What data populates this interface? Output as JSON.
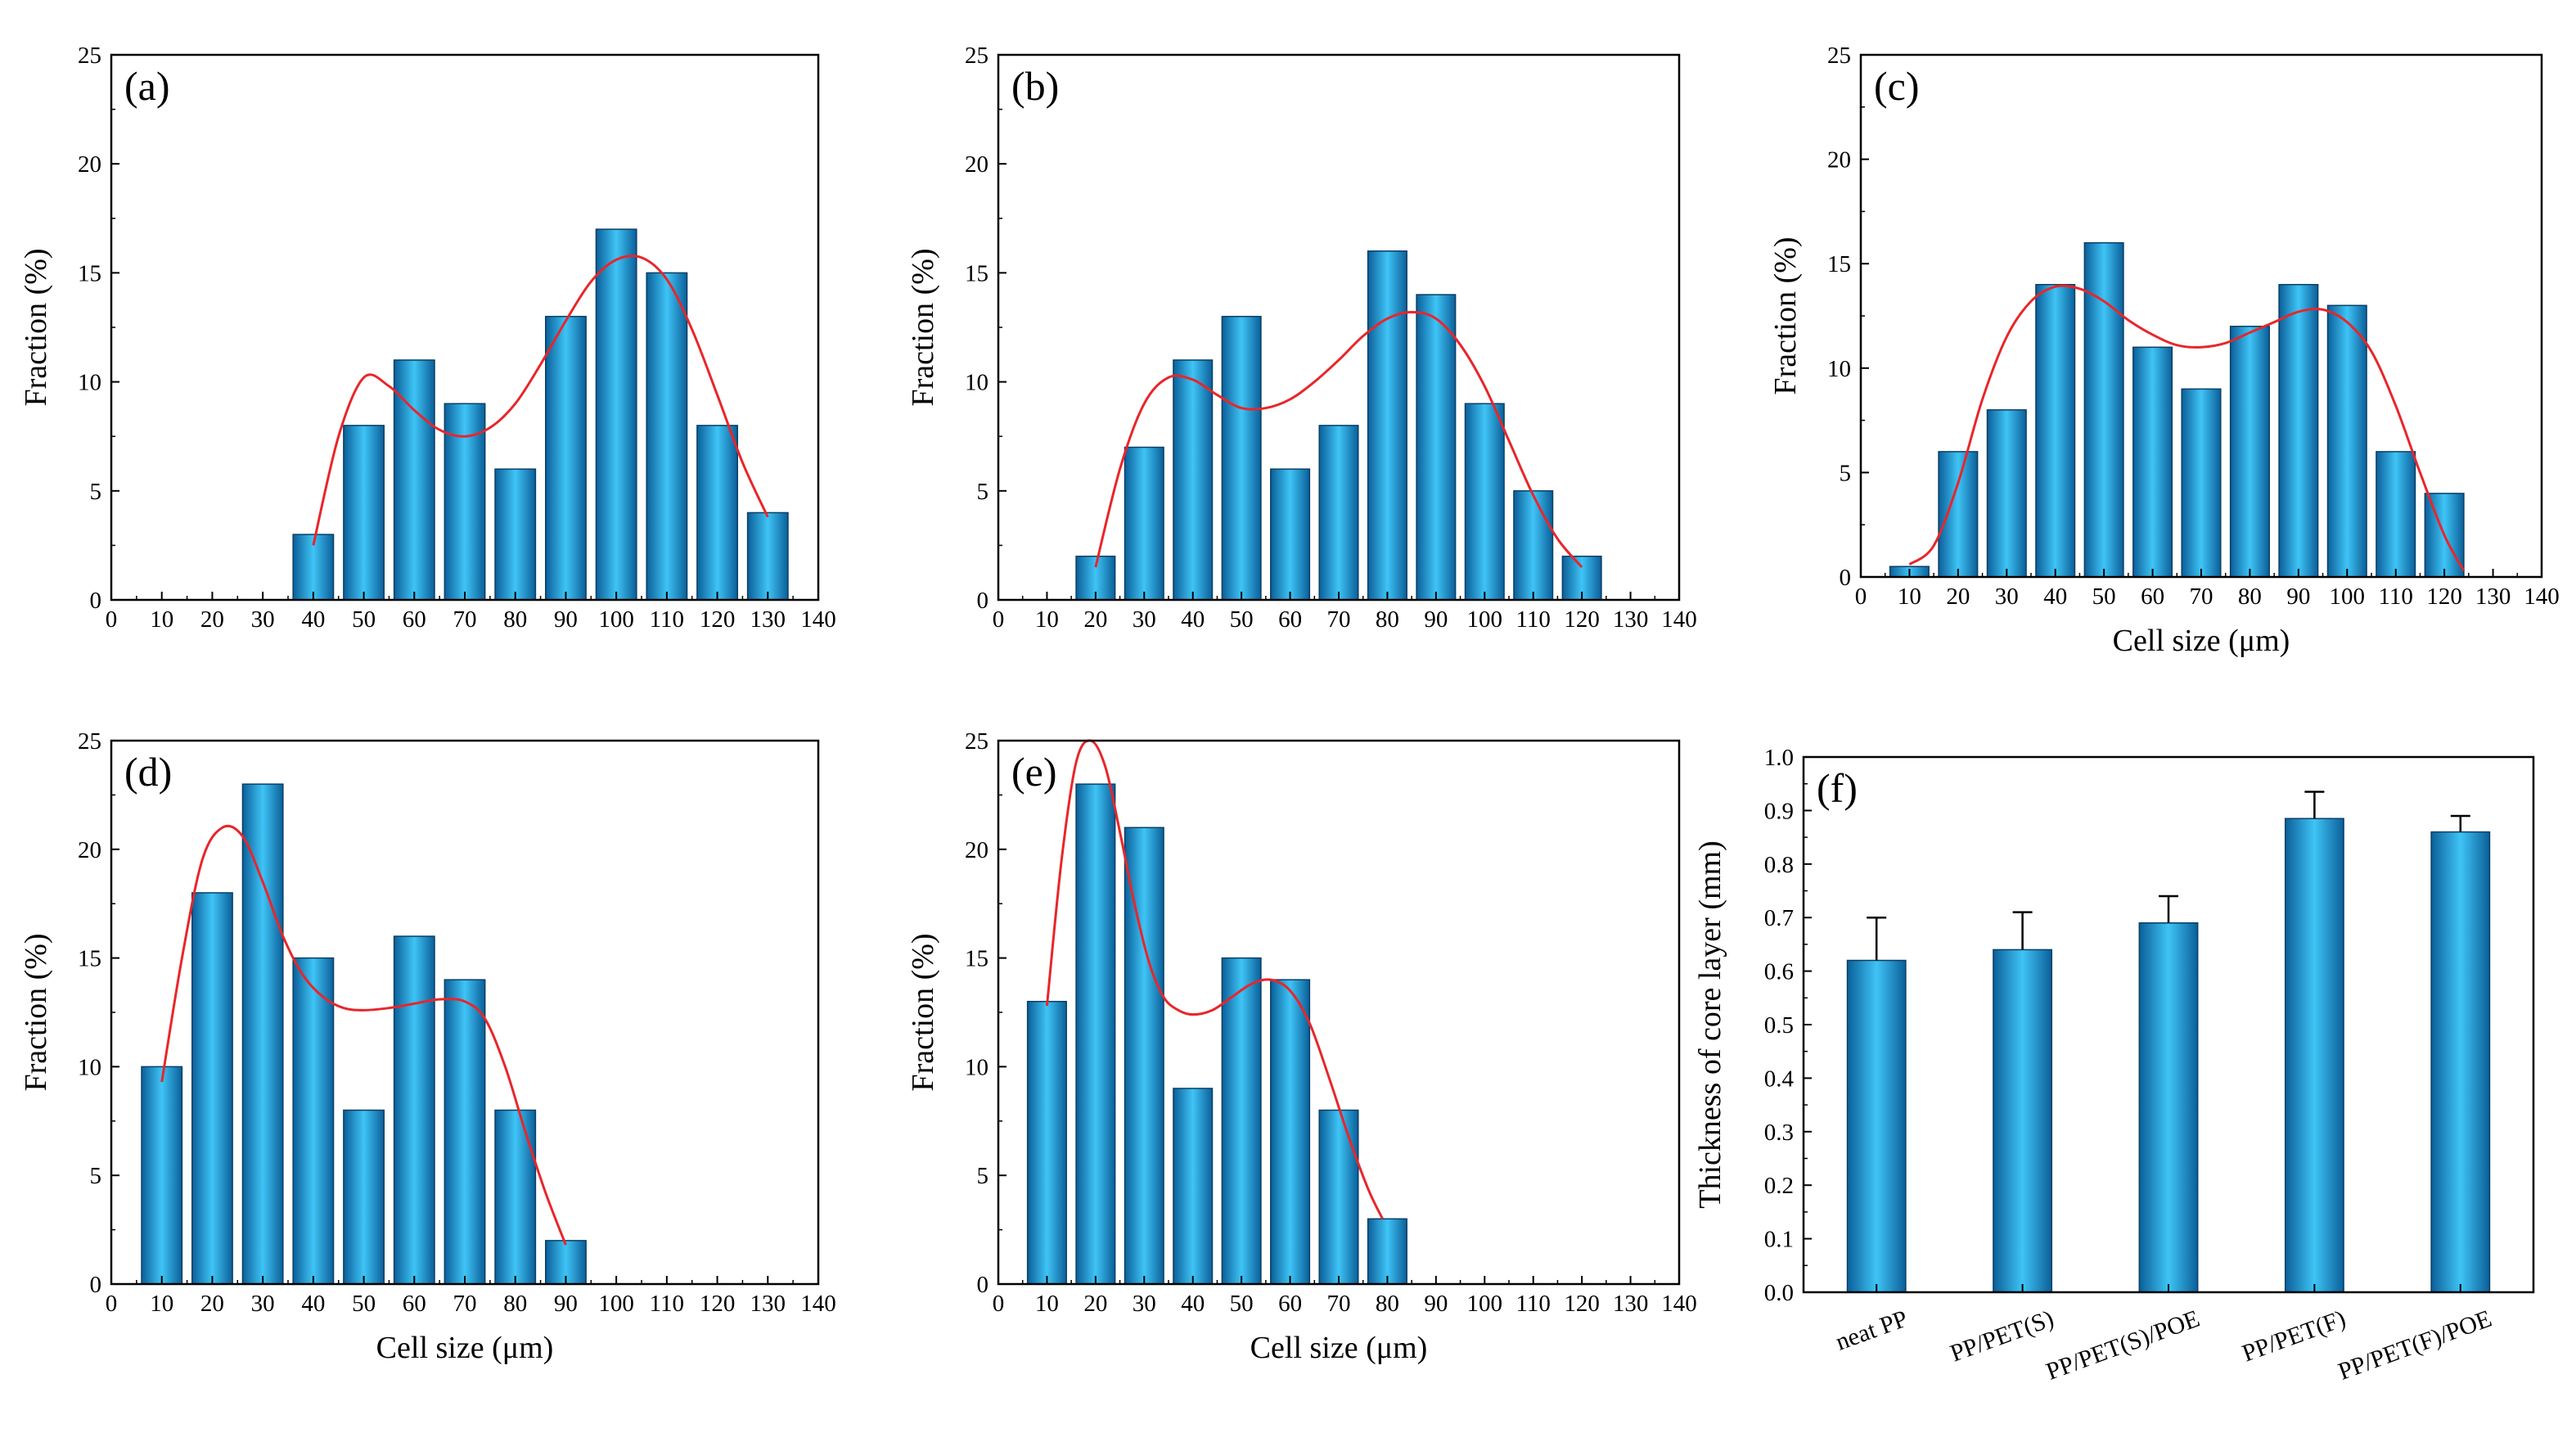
{
  "colors": {
    "bar_dark": "#0b5f99",
    "bar_light": "#3fc4f6",
    "bar_mid": "#19a4e6",
    "fit_line": "#e8262a",
    "axis": "#000000"
  },
  "chart_data": [
    {
      "id": "a",
      "type": "bar",
      "panel_label": "(a)",
      "title": "",
      "xlabel": "",
      "ylabel": "Fraction (%)",
      "xlim": [
        0,
        140
      ],
      "ylim": [
        0,
        25
      ],
      "x_ticks": [
        "0",
        "10",
        "20",
        "30",
        "40",
        "50",
        "60",
        "70",
        "80",
        "90",
        "100",
        "110",
        "120",
        "130",
        "140"
      ],
      "y_ticks": [
        "0",
        "5",
        "10",
        "15",
        "20",
        "25"
      ],
      "x": [
        40,
        50,
        60,
        70,
        80,
        90,
        100,
        110,
        120,
        130
      ],
      "values": [
        3,
        8,
        11,
        9,
        6,
        13,
        17,
        15,
        8,
        4
      ],
      "fit_curve": [
        [
          40,
          2.5
        ],
        [
          45,
          7.5
        ],
        [
          50,
          10.2
        ],
        [
          55,
          9.8
        ],
        [
          60,
          8.7
        ],
        [
          65,
          7.8
        ],
        [
          70,
          7.5
        ],
        [
          75,
          7.9
        ],
        [
          80,
          9.0
        ],
        [
          85,
          10.8
        ],
        [
          90,
          12.8
        ],
        [
          95,
          14.6
        ],
        [
          100,
          15.6
        ],
        [
          105,
          15.7
        ],
        [
          110,
          14.7
        ],
        [
          115,
          12.4
        ],
        [
          120,
          9.4
        ],
        [
          125,
          6.3
        ],
        [
          130,
          3.8
        ]
      ]
    },
    {
      "id": "b",
      "type": "bar",
      "panel_label": "(b)",
      "title": "",
      "xlabel": "",
      "ylabel": "Fraction (%)",
      "xlim": [
        0,
        140
      ],
      "ylim": [
        0,
        25
      ],
      "x_ticks": [
        "0",
        "10",
        "20",
        "30",
        "40",
        "50",
        "60",
        "70",
        "80",
        "90",
        "100",
        "110",
        "120",
        "130",
        "140"
      ],
      "y_ticks": [
        "0",
        "5",
        "10",
        "15",
        "20",
        "25"
      ],
      "x": [
        20,
        30,
        40,
        50,
        60,
        70,
        80,
        90,
        100,
        110,
        120
      ],
      "values": [
        2,
        7,
        11,
        13,
        6,
        8,
        16,
        14,
        9,
        5,
        2
      ],
      "fit_curve": [
        [
          20,
          1.5
        ],
        [
          25,
          6.0
        ],
        [
          30,
          9.0
        ],
        [
          35,
          10.2
        ],
        [
          40,
          10.1
        ],
        [
          45,
          9.4
        ],
        [
          50,
          8.8
        ],
        [
          55,
          8.8
        ],
        [
          60,
          9.2
        ],
        [
          65,
          10.0
        ],
        [
          70,
          11.0
        ],
        [
          75,
          12.1
        ],
        [
          80,
          12.9
        ],
        [
          85,
          13.2
        ],
        [
          90,
          12.9
        ],
        [
          95,
          11.7
        ],
        [
          100,
          9.8
        ],
        [
          105,
          7.3
        ],
        [
          110,
          4.8
        ],
        [
          115,
          2.8
        ],
        [
          120,
          1.5
        ]
      ]
    },
    {
      "id": "c",
      "type": "bar",
      "panel_label": "(c)",
      "title": "",
      "xlabel": "Cell size (μm)",
      "ylabel": "Fraction (%)",
      "xlim": [
        0,
        140
      ],
      "ylim": [
        0,
        25
      ],
      "x_ticks": [
        "0",
        "10",
        "20",
        "30",
        "40",
        "50",
        "60",
        "70",
        "80",
        "90",
        "100",
        "110",
        "120",
        "130",
        "140"
      ],
      "y_ticks": [
        "0",
        "5",
        "10",
        "15",
        "20",
        "25"
      ],
      "x": [
        10,
        20,
        30,
        40,
        50,
        60,
        70,
        80,
        90,
        100,
        110,
        120
      ],
      "values": [
        0.5,
        6,
        8,
        14,
        16,
        11,
        9,
        12,
        14,
        13,
        6,
        4
      ],
      "fit_curve": [
        [
          10,
          0.6
        ],
        [
          15,
          1.5
        ],
        [
          20,
          4.5
        ],
        [
          25,
          8.5
        ],
        [
          30,
          11.5
        ],
        [
          35,
          13.2
        ],
        [
          40,
          13.9
        ],
        [
          45,
          13.8
        ],
        [
          50,
          13.2
        ],
        [
          55,
          12.3
        ],
        [
          60,
          11.6
        ],
        [
          65,
          11.1
        ],
        [
          70,
          11.0
        ],
        [
          75,
          11.2
        ],
        [
          80,
          11.7
        ],
        [
          85,
          12.2
        ],
        [
          90,
          12.7
        ],
        [
          95,
          12.8
        ],
        [
          100,
          12.2
        ],
        [
          105,
          10.8
        ],
        [
          110,
          8.2
        ],
        [
          115,
          5.0
        ],
        [
          120,
          2.0
        ],
        [
          124,
          0.3
        ]
      ]
    },
    {
      "id": "d",
      "type": "bar",
      "panel_label": "(d)",
      "title": "",
      "xlabel": "Cell size (μm)",
      "ylabel": "Fraction (%)",
      "xlim": [
        0,
        140
      ],
      "ylim": [
        0,
        25
      ],
      "x_ticks": [
        "0",
        "10",
        "20",
        "30",
        "40",
        "50",
        "60",
        "70",
        "80",
        "90",
        "100",
        "110",
        "120",
        "130",
        "140"
      ],
      "y_ticks": [
        "0",
        "5",
        "10",
        "15",
        "20",
        "25"
      ],
      "x": [
        10,
        20,
        30,
        40,
        50,
        60,
        70,
        80,
        90
      ],
      "values": [
        10,
        18,
        23,
        15,
        8,
        16,
        14,
        8,
        2
      ],
      "fit_curve": [
        [
          10,
          9.3
        ],
        [
          14,
          15.0
        ],
        [
          18,
          19.5
        ],
        [
          22,
          21.0
        ],
        [
          26,
          20.6
        ],
        [
          30,
          18.5
        ],
        [
          34,
          16.0
        ],
        [
          38,
          14.2
        ],
        [
          42,
          13.2
        ],
        [
          46,
          12.7
        ],
        [
          50,
          12.6
        ],
        [
          55,
          12.7
        ],
        [
          60,
          12.9
        ],
        [
          65,
          13.1
        ],
        [
          70,
          13.0
        ],
        [
          74,
          12.2
        ],
        [
          78,
          10.0
        ],
        [
          82,
          7.0
        ],
        [
          86,
          4.2
        ],
        [
          90,
          1.8
        ]
      ]
    },
    {
      "id": "e",
      "type": "bar",
      "panel_label": "(e)",
      "title": "",
      "xlabel": "Cell size (μm)",
      "ylabel": "Fraction (%)",
      "xlim": [
        0,
        140
      ],
      "ylim": [
        0,
        25
      ],
      "x_ticks": [
        "0",
        "10",
        "20",
        "30",
        "40",
        "50",
        "60",
        "70",
        "80",
        "90",
        "100",
        "110",
        "120",
        "130",
        "140"
      ],
      "y_ticks": [
        "0",
        "5",
        "10",
        "15",
        "20",
        "25"
      ],
      "x": [
        10,
        20,
        30,
        40,
        50,
        60,
        70,
        80
      ],
      "values": [
        13,
        23,
        21,
        9,
        15,
        14,
        8,
        3
      ],
      "fit_curve": [
        [
          10,
          12.8
        ],
        [
          13,
          19.5
        ],
        [
          16,
          24.0
        ],
        [
          19,
          25.0
        ],
        [
          22,
          23.8
        ],
        [
          25,
          20.8
        ],
        [
          28,
          17.5
        ],
        [
          31,
          14.8
        ],
        [
          34,
          13.2
        ],
        [
          37,
          12.6
        ],
        [
          40,
          12.4
        ],
        [
          44,
          12.6
        ],
        [
          48,
          13.2
        ],
        [
          52,
          13.8
        ],
        [
          56,
          14.0
        ],
        [
          60,
          13.5
        ],
        [
          64,
          12.0
        ],
        [
          68,
          9.5
        ],
        [
          72,
          6.8
        ],
        [
          76,
          4.4
        ],
        [
          79,
          3.0
        ]
      ]
    },
    {
      "id": "f",
      "type": "bar",
      "panel_label": "(f)",
      "title": "",
      "xlabel": "",
      "ylabel": "Thickness of core layer (mm)",
      "ylim": [
        0,
        1.0
      ],
      "y_ticks": [
        "0.0",
        "0.1",
        "0.2",
        "0.3",
        "0.4",
        "0.5",
        "0.6",
        "0.7",
        "0.8",
        "0.9",
        "1.0"
      ],
      "categories": [
        "neat PP",
        "PP/PET(S)",
        "PP/PET(S)/POE",
        "PP/PET(F)",
        "PP/PET(F)/POE"
      ],
      "values": [
        0.62,
        0.64,
        0.69,
        0.885,
        0.86
      ],
      "errors": [
        0.08,
        0.07,
        0.05,
        0.05,
        0.03
      ]
    }
  ]
}
